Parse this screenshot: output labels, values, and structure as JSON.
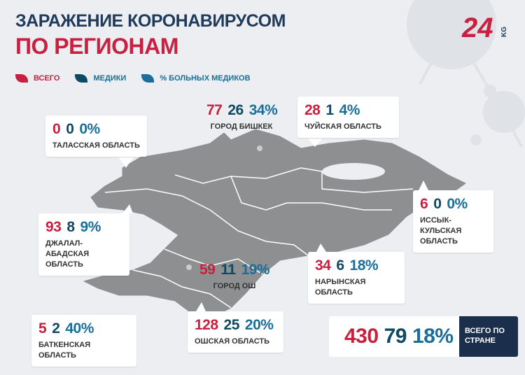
{
  "header": {
    "title": "ЗАРАЖЕНИЕ КОРОНАВИРУСОМ",
    "subtitle": "ПО РЕГИОНАМ",
    "logo": "24",
    "logo_suffix": "KG"
  },
  "legend": [
    {
      "label": "ВСЕГО",
      "color": "#c8213f"
    },
    {
      "label": "МЕДИКИ",
      "color": "#0f4a63"
    },
    {
      "label": "% БОЛЬНЫХ МЕДИКОВ",
      "color": "#1a6e9a"
    }
  ],
  "regions": [
    {
      "name": "ГОРОД БИШКЕК",
      "total": 77,
      "medics": 26,
      "percent": "34%"
    },
    {
      "name": "ЧУЙСКАЯ ОБЛАСТЬ",
      "total": 28,
      "medics": 1,
      "percent": "4%"
    },
    {
      "name": "ТАЛАССКАЯ ОБЛАСТЬ",
      "total": 0,
      "medics": 0,
      "percent": "0%"
    },
    {
      "name": "ИССЫК-КУЛЬСКАЯ ОБЛАСТЬ",
      "total": 6,
      "medics": 0,
      "percent": "0%"
    },
    {
      "name": "ДЖАЛАЛ-АБАДСКАЯ ОБЛАСТЬ",
      "total": 93,
      "medics": 8,
      "percent": "9%"
    },
    {
      "name": "ГОРОД ОШ",
      "total": 59,
      "medics": 11,
      "percent": "19%"
    },
    {
      "name": "НАРЫНСКАЯ ОБЛАСТЬ",
      "total": 34,
      "medics": 6,
      "percent": "18%"
    },
    {
      "name": "БАТКЕНСКАЯ ОБЛАСТЬ",
      "total": 5,
      "medics": 2,
      "percent": "40%"
    },
    {
      "name": "ОШСКАЯ ОБЛАСТЬ",
      "total": 128,
      "medics": 25,
      "percent": "20%"
    }
  ],
  "total": {
    "label": "ВСЕГО ПО СТРАНЕ",
    "total": 430,
    "medics": 79,
    "percent": "18%"
  }
}
